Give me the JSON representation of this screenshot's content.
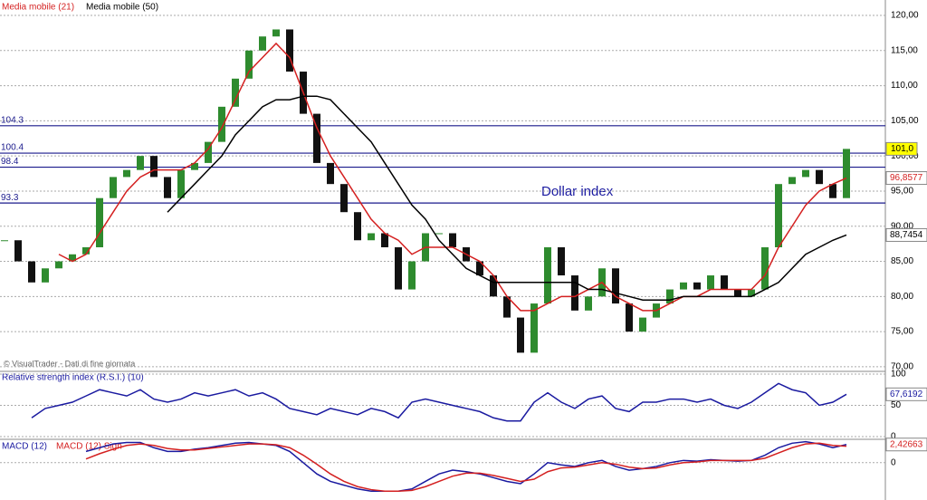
{
  "chart_data": {
    "type": "candlestick",
    "annotation": "Dollar index",
    "source": "© VisualTrader - Dati di fine giornata",
    "ylim": [
      69.6,
      120.9
    ],
    "yticks": [
      {
        "value": 70,
        "label": "70,00"
      },
      {
        "value": 75,
        "label": "75,00"
      },
      {
        "value": 80,
        "label": "80,00"
      },
      {
        "value": 85,
        "label": "85,00"
      },
      {
        "value": 90,
        "label": "90,00"
      },
      {
        "value": 95,
        "label": "95,00"
      },
      {
        "value": 100,
        "label": "100,00"
      },
      {
        "value": 105,
        "label": "105,00"
      },
      {
        "value": 110,
        "label": "110,00"
      },
      {
        "value": 115,
        "label": "115,00"
      },
      {
        "value": 120,
        "label": "120,00"
      }
    ],
    "grid": true,
    "levels": [
      104.3,
      100.4,
      98.4,
      93.3
    ],
    "level_color": "#1a1a8c",
    "up_color": "#2e8b2e",
    "down_color": "#111111",
    "close": {
      "values": [
        88,
        85,
        82,
        84,
        85,
        86,
        87,
        94,
        97,
        98,
        100,
        97,
        94,
        98,
        99,
        102,
        107,
        111,
        115,
        117,
        118,
        112,
        106,
        99,
        96,
        92,
        88,
        89,
        87,
        81,
        85,
        89,
        89,
        87,
        85,
        83,
        80,
        77,
        72,
        79,
        87,
        83,
        78,
        80,
        84,
        79,
        75,
        77,
        79,
        81,
        82,
        81,
        83,
        81,
        80,
        81,
        87,
        96,
        97,
        98,
        96,
        94,
        101
      ],
      "last_label": "101,0"
    },
    "series": [
      {
        "name": "Media mobile (21)",
        "color": "#d42020",
        "values": [
          null,
          null,
          null,
          null,
          86,
          85,
          86,
          89,
          92,
          95,
          97,
          98,
          98,
          98,
          99,
          101,
          104,
          108,
          112,
          114,
          116,
          114,
          109,
          104,
          100,
          97,
          94,
          91,
          89,
          88,
          86,
          87,
          87,
          87,
          86,
          85,
          83,
          80,
          78,
          78,
          79,
          80,
          80,
          81,
          82,
          80,
          79,
          78,
          78,
          79,
          80,
          80,
          81,
          81,
          81,
          81,
          83,
          87,
          90,
          93,
          95,
          96,
          96.8577
        ],
        "last_label": "96,8577"
      },
      {
        "name": "Media mobile (50)",
        "color": "#000000",
        "values": [
          null,
          null,
          null,
          null,
          null,
          null,
          null,
          null,
          null,
          null,
          null,
          null,
          92,
          94,
          96,
          98,
          100,
          103,
          105,
          107,
          108,
          108,
          108.5,
          108.5,
          108,
          106,
          104,
          102,
          99,
          96,
          93,
          91,
          88,
          86,
          84,
          83,
          82,
          82,
          82,
          82,
          82,
          82,
          82,
          81,
          81,
          80.5,
          80,
          79.5,
          79.5,
          79.5,
          80,
          80,
          80,
          80,
          80,
          80,
          81,
          82,
          84,
          86,
          87,
          88,
          88.7454
        ],
        "last_label": "88,7454"
      }
    ],
    "rsi": {
      "title": "Relative strength index (R.S.I.) (10)",
      "color": "#1a1aa0",
      "ylim": [
        -2.9,
        104.3
      ],
      "yticks": [
        100,
        50,
        0
      ],
      "values": [
        null,
        null,
        30,
        45,
        50,
        55,
        65,
        75,
        70,
        65,
        75,
        60,
        55,
        60,
        70,
        65,
        70,
        75,
        65,
        70,
        60,
        45,
        40,
        35,
        45,
        40,
        35,
        45,
        40,
        30,
        55,
        60,
        55,
        50,
        45,
        40,
        30,
        25,
        25,
        55,
        70,
        55,
        45,
        60,
        65,
        45,
        40,
        55,
        55,
        60,
        60,
        55,
        60,
        50,
        45,
        55,
        70,
        85,
        75,
        70,
        50,
        55,
        67.6192
      ],
      "last_label": "67,6192"
    },
    "macd": {
      "ylim": [
        -4.5,
        3.0
      ],
      "yticks": [
        0
      ],
      "series": [
        {
          "name": "MACD (12)",
          "color": "#1a1aa0",
          "values": [
            null,
            null,
            null,
            null,
            null,
            null,
            1.5,
            2,
            2.5,
            2.7,
            2.7,
            2,
            1.5,
            1.5,
            1.8,
            2,
            2.3,
            2.6,
            2.7,
            2.5,
            2.3,
            1.5,
            0,
            -1.5,
            -2.5,
            -3,
            -3.5,
            -3.8,
            -3.8,
            -3.8,
            -3.5,
            -2.5,
            -1.5,
            -1,
            -1.2,
            -1.5,
            -2,
            -2.5,
            -2.8,
            -1.5,
            0,
            -0.3,
            -0.5,
            0,
            0.3,
            -0.5,
            -1,
            -0.8,
            -0.5,
            0,
            0.3,
            0.2,
            0.4,
            0.3,
            0.2,
            0.3,
            1,
            2,
            2.6,
            2.8,
            2.5,
            2,
            2.42663
          ],
          "last_label": "2,42663"
        },
        {
          "name": "MACD (12) Sign",
          "color": "#d42020",
          "values": [
            null,
            null,
            null,
            null,
            null,
            null,
            0.5,
            1.2,
            1.8,
            2.3,
            2.5,
            2.3,
            1.9,
            1.7,
            1.7,
            1.9,
            2.1,
            2.3,
            2.5,
            2.5,
            2.4,
            2,
            1,
            -0.2,
            -1.5,
            -2.5,
            -3.2,
            -3.6,
            -3.8,
            -3.8,
            -3.7,
            -3.2,
            -2.5,
            -1.8,
            -1.4,
            -1.4,
            -1.7,
            -2.1,
            -2.5,
            -2.2,
            -1.2,
            -0.7,
            -0.6,
            -0.3,
            0,
            -0.2,
            -0.6,
            -0.8,
            -0.7,
            -0.3,
            0,
            0.1,
            0.3,
            0.3,
            0.3,
            0.3,
            0.6,
            1.3,
            2,
            2.5,
            2.6,
            2.3,
            2.2
          ]
        }
      ]
    }
  }
}
